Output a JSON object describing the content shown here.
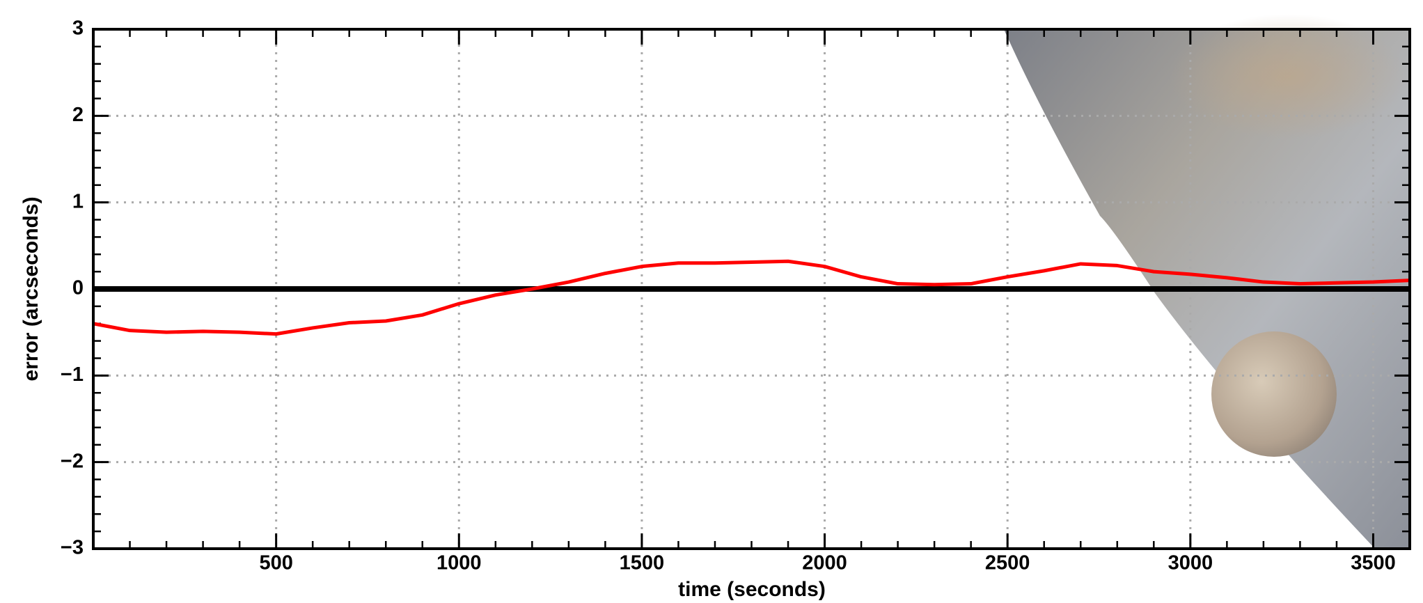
{
  "chart_data": {
    "type": "line",
    "xlabel": "time (seconds)",
    "ylabel": "error (arcseconds)",
    "x": [
      0,
      100,
      200,
      300,
      400,
      500,
      600,
      700,
      800,
      900,
      1000,
      1100,
      1200,
      1300,
      1400,
      1500,
      1600,
      1700,
      1800,
      1900,
      2000,
      2100,
      2200,
      2300,
      2400,
      2500,
      2600,
      2700,
      2800,
      2900,
      3000,
      3100,
      3200,
      3300,
      3400,
      3500,
      3600
    ],
    "series": [
      {
        "name": "error",
        "color": "#ff0000",
        "values": [
          -0.4,
          -0.48,
          -0.5,
          -0.49,
          -0.5,
          -0.52,
          -0.45,
          -0.39,
          -0.37,
          -0.3,
          -0.17,
          -0.07,
          0.0,
          0.08,
          0.18,
          0.26,
          0.3,
          0.3,
          0.31,
          0.32,
          0.26,
          0.14,
          0.06,
          0.05,
          0.06,
          0.14,
          0.21,
          0.29,
          0.27,
          0.2,
          0.17,
          0.13,
          0.08,
          0.06,
          0.07,
          0.08,
          0.1
        ]
      }
    ],
    "hline": 0,
    "xlim": [
      0,
      3600
    ],
    "ylim": [
      -3,
      3
    ],
    "xticks": [
      500,
      1000,
      1500,
      2000,
      2500,
      3000,
      3500
    ],
    "yticks": [
      {
        "value": -3,
        "label": "−3"
      },
      {
        "value": -2,
        "label": "−2"
      },
      {
        "value": -1,
        "label": "−1"
      },
      0,
      1,
      2,
      3
    ],
    "xminorticks": [
      100,
      200,
      300,
      400,
      600,
      700,
      800,
      900,
      1100,
      1200,
      1300,
      1400,
      1600,
      1700,
      1800,
      1900,
      2100,
      2200,
      2300,
      2400,
      2600,
      2700,
      2800,
      2900,
      3100,
      3200,
      3300,
      3400
    ],
    "yminorticks": [
      -2.8,
      -2.6,
      -2.4,
      -2.2,
      -1.8,
      -1.6,
      -1.4,
      -1.2,
      -0.8,
      -0.6,
      -0.4,
      -0.2,
      0.2,
      0.4,
      0.6,
      0.8,
      1.2,
      1.4,
      1.6,
      1.8,
      2.2,
      2.4,
      2.6,
      2.8
    ],
    "grid": true
  }
}
